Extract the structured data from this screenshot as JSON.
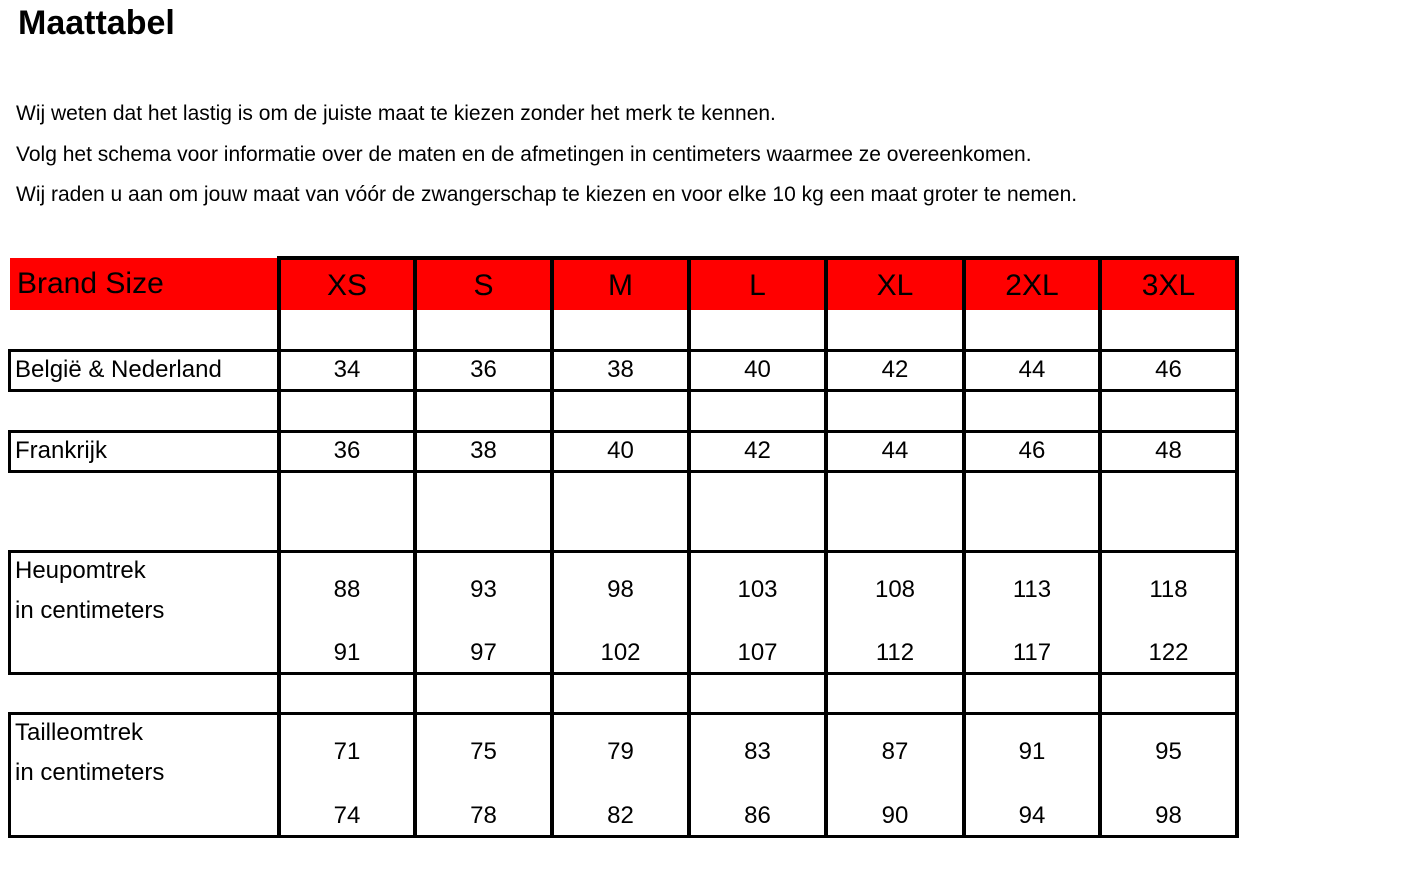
{
  "title": "Maattabel",
  "intro": [
    "Wij weten dat het lastig is om de juiste maat te kiezen zonder het merk te kennen.",
    "Volg het schema voor informatie over de maten en de afmetingen in centimeters waarmee ze overeenkomen.",
    "Wij raden u aan om jouw maat van vóór de zwangerschap te kiezen en voor elke 10 kg een maat groter te nemen."
  ],
  "table": {
    "header_label": "Brand Size",
    "header_color": "#ff0000",
    "sizes": [
      "XS",
      "S",
      "M",
      "L",
      "XL",
      "2XL",
      "3XL"
    ],
    "rows": [
      {
        "label": [
          "België & Nederland"
        ],
        "values": [
          [
            "34"
          ],
          [
            "36"
          ],
          [
            "38"
          ],
          [
            "40"
          ],
          [
            "42"
          ],
          [
            "44"
          ],
          [
            "46"
          ]
        ]
      },
      {
        "label": [
          "Frankrijk"
        ],
        "values": [
          [
            "36"
          ],
          [
            "38"
          ],
          [
            "40"
          ],
          [
            "42"
          ],
          [
            "44"
          ],
          [
            "46"
          ],
          [
            "48"
          ]
        ]
      },
      {
        "label": [
          "Heupomtrek",
          "in centimeters"
        ],
        "values": [
          [
            "88",
            "91"
          ],
          [
            "93",
            "97"
          ],
          [
            "98",
            "102"
          ],
          [
            "103",
            "107"
          ],
          [
            "108",
            "112"
          ],
          [
            "113",
            "117"
          ],
          [
            "118",
            "122"
          ]
        ]
      },
      {
        "label": [
          "Tailleomtrek",
          "in centimeters"
        ],
        "values": [
          [
            "71",
            "74"
          ],
          [
            "75",
            "78"
          ],
          [
            "79",
            "82"
          ],
          [
            "83",
            "86"
          ],
          [
            "87",
            "90"
          ],
          [
            "91",
            "94"
          ],
          [
            "95",
            "98"
          ]
        ]
      }
    ]
  }
}
